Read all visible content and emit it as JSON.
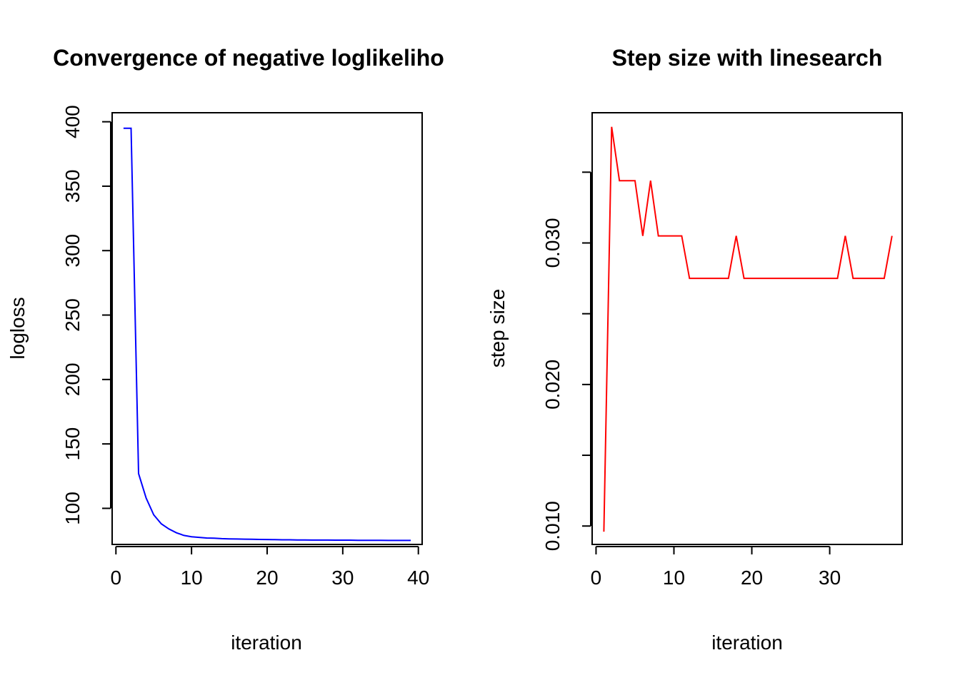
{
  "chart_data": [
    {
      "type": "line",
      "title": "Convergence of negative loglikeliho",
      "xlabel": "iteration",
      "ylabel": "logloss",
      "xlim": [
        -0.5,
        40.5
      ],
      "ylim": [
        72,
        407
      ],
      "x_ticks": [
        0,
        10,
        20,
        30,
        40
      ],
      "y_ticks": [
        100,
        150,
        200,
        250,
        300,
        350,
        400
      ],
      "grid": false,
      "color": "#0000ff",
      "x": [
        1,
        2,
        3,
        4,
        5,
        6,
        7,
        8,
        9,
        10,
        11,
        12,
        13,
        14,
        15,
        16,
        17,
        18,
        19,
        20,
        21,
        22,
        23,
        24,
        25,
        26,
        27,
        28,
        29,
        30,
        31,
        32,
        33,
        34,
        35,
        36,
        37,
        38,
        39
      ],
      "y": [
        395,
        395,
        127,
        108,
        95,
        88,
        84,
        81,
        79,
        78,
        77.5,
        77,
        76.8,
        76.5,
        76.3,
        76.2,
        76.1,
        76,
        75.9,
        75.8,
        75.7,
        75.6,
        75.6,
        75.5,
        75.5,
        75.4,
        75.4,
        75.4,
        75.3,
        75.3,
        75.3,
        75.2,
        75.2,
        75.2,
        75.2,
        75.1,
        75.1,
        75.1,
        75.1
      ]
    },
    {
      "type": "line",
      "title": "Step size with linesearch",
      "xlabel": "iteration",
      "ylabel": "step size",
      "xlim": [
        -0.5,
        39.3
      ],
      "ylim": [
        0.0087,
        0.0392
      ],
      "x_ticks": [
        0,
        10,
        20,
        30
      ],
      "y_ticks": [
        0.01,
        0.015,
        0.02,
        0.025,
        0.03,
        0.035
      ],
      "y_tick_labels": [
        "0.010",
        "",
        "0.020",
        "",
        "0.030",
        ""
      ],
      "grid": false,
      "color": "#ff0000",
      "x": [
        1,
        2,
        3,
        4,
        5,
        6,
        7,
        8,
        9,
        10,
        11,
        12,
        13,
        14,
        15,
        16,
        17,
        18,
        19,
        20,
        21,
        22,
        23,
        24,
        25,
        26,
        27,
        28,
        29,
        30,
        31,
        32,
        33,
        34,
        35,
        36,
        37,
        38
      ],
      "y": [
        0.0096,
        0.0382,
        0.0344,
        0.0344,
        0.0344,
        0.0305,
        0.0344,
        0.0305,
        0.0305,
        0.0305,
        0.0305,
        0.0275,
        0.0275,
        0.0275,
        0.0275,
        0.0275,
        0.0275,
        0.0305,
        0.0275,
        0.0275,
        0.0275,
        0.0275,
        0.0275,
        0.0275,
        0.0275,
        0.0275,
        0.0275,
        0.0275,
        0.0275,
        0.0275,
        0.0275,
        0.0305,
        0.0275,
        0.0275,
        0.0275,
        0.0275,
        0.0275,
        0.0305
      ]
    }
  ]
}
